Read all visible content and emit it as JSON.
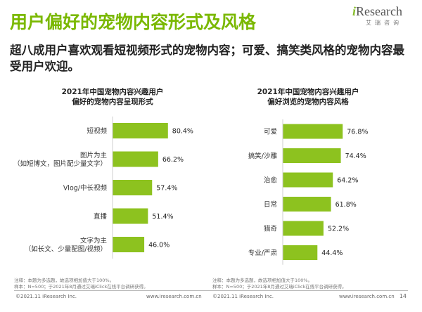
{
  "page": {
    "title": "用户偏好的宠物内容形式及风格",
    "subtitle": "超八成用户喜欢观看短视频形式的宠物内容；可爱、搞笑类风格的宠物内容最受用户欢迎。",
    "logo_main": "Research",
    "logo_i": "i",
    "logo_sub": "艾瑞咨询"
  },
  "chart_data": [
    {
      "type": "bar",
      "orientation": "horizontal",
      "title_line1": "2021年中国宠物内容兴趣用户",
      "title_line2": "偏好的宠物内容呈现形式",
      "categories": [
        [
          "短视频"
        ],
        [
          "图片为主",
          "（如短博文，图片配少量文字）"
        ],
        [
          "Vlog/中长视频"
        ],
        [
          "直播"
        ],
        [
          "文字为主",
          "（如长文、少量配图/视频）"
        ]
      ],
      "values": [
        80.4,
        66.2,
        57.4,
        51.4,
        46.0
      ],
      "value_labels": [
        "80.4%",
        "66.2%",
        "57.4%",
        "51.4%",
        "46.0%"
      ],
      "bar_color": "#8dc21f",
      "grid": false
    },
    {
      "type": "bar",
      "orientation": "horizontal",
      "title_line1": "2021年中国宠物内容兴趣用户",
      "title_line2": "偏好浏览的宠物内容风格",
      "categories": [
        [
          "可爱"
        ],
        [
          "搞笑/沙雕"
        ],
        [
          "治愈"
        ],
        [
          "日常"
        ],
        [
          "猎奇"
        ],
        [
          "专业/严肃"
        ]
      ],
      "values": [
        76.8,
        74.4,
        64.2,
        61.8,
        52.2,
        44.4
      ],
      "value_labels": [
        "76.8%",
        "74.4%",
        "64.2%",
        "61.8%",
        "52.2%",
        "44.4%"
      ],
      "bar_color": "#8dc21f",
      "grid": false
    }
  ],
  "notes": {
    "note1": "注释：本题为多选题，故选项相加值大于100%。",
    "source": "样本：N=500；于2021年8月通过艾瑞iClick在线平台调研获得。"
  },
  "footer": {
    "copyright": "©2021.11 iResearch Inc.",
    "url": "www.iresearch.com.cn",
    "page_number": "14"
  }
}
